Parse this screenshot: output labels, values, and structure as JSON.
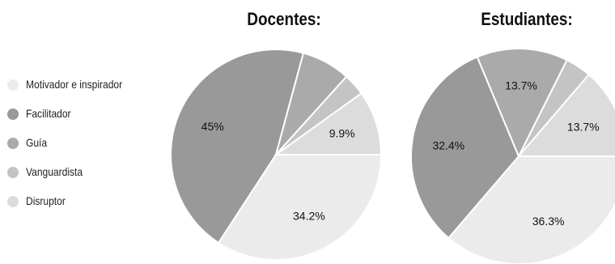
{
  "palette": {
    "motivador": "#ebebeb",
    "facilitador": "#999999",
    "guia": "#aaaaaa",
    "vanguardista": "#c4c4c4",
    "disruptor": "#dcdcdc"
  },
  "legend": [
    {
      "label": "Motivador e inspirador",
      "color": "#ebebeb"
    },
    {
      "label": "Facilitador",
      "color": "#999999"
    },
    {
      "label": "Guía",
      "color": "#aaaaaa"
    },
    {
      "label": "Vanguardista",
      "color": "#c4c4c4"
    },
    {
      "label": "Disruptor",
      "color": "#dcdcdc"
    }
  ],
  "chart_data": [
    {
      "type": "pie",
      "title": "Docentes:",
      "categories": [
        "Motivador e inspirador",
        "Facilitador",
        "Guía",
        "Vanguardista",
        "Disruptor"
      ],
      "values": [
        34.2,
        45,
        7.5,
        3.4,
        9.9
      ],
      "labels": [
        "34.2%",
        "45%",
        "",
        "",
        "9.9%"
      ]
    },
    {
      "type": "pie",
      "title": "Estudiantes:",
      "categories": [
        "Motivador e inspirador",
        "Facilitador",
        "Guía",
        "Vanguardista",
        "Disruptor"
      ],
      "values": [
        36.3,
        32.4,
        13.7,
        3.9,
        13.7
      ],
      "labels": [
        "36.3%",
        "32.4%",
        "13.7%",
        "",
        "13.7%"
      ]
    }
  ]
}
